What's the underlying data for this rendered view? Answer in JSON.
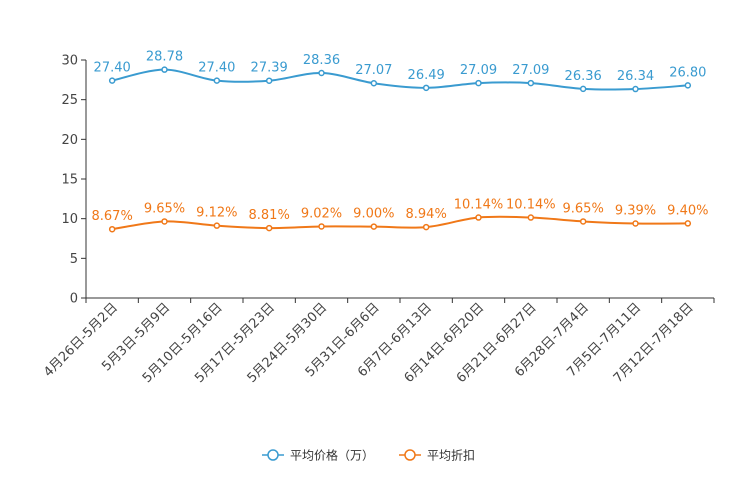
{
  "chart_data": {
    "type": "line",
    "categories": [
      "4月26日-5月2日",
      "5月3日-5月9日",
      "5月10日-5月16日",
      "5月17日-5月23日",
      "5月24日-5月30日",
      "5月31日-6月6日",
      "6月7日-6月13日",
      "6月14日-6月20日",
      "6月21日-6月27日",
      "6月28日-7月4日",
      "7月5日-7月11日",
      "7月12日-7月18日"
    ],
    "ylim": [
      0,
      30
    ],
    "yticks": [
      0,
      5,
      10,
      15,
      20,
      25,
      30
    ],
    "series": [
      {
        "name": "平均价格（万）",
        "color": "#3a9bd0",
        "values": [
          27.4,
          28.78,
          27.4,
          27.39,
          28.36,
          27.07,
          26.49,
          27.09,
          27.09,
          26.36,
          26.34,
          26.8
        ],
        "labels": [
          "27.40",
          "28.78",
          "27.40",
          "27.39",
          "28.36",
          "27.07",
          "26.49",
          "27.09",
          "27.09",
          "26.36",
          "26.34",
          "26.80"
        ]
      },
      {
        "name": "平均折扣",
        "color": "#f07818",
        "values": [
          8.67,
          9.65,
          9.12,
          8.81,
          9.02,
          9.0,
          8.94,
          10.14,
          10.14,
          9.65,
          9.39,
          9.4
        ],
        "labels": [
          "8.67%",
          "9.65%",
          "9.12%",
          "8.81%",
          "9.02%",
          "9.00%",
          "8.94%",
          "10.14%",
          "10.14%",
          "9.65%",
          "9.39%",
          "9.40%"
        ]
      }
    ]
  }
}
